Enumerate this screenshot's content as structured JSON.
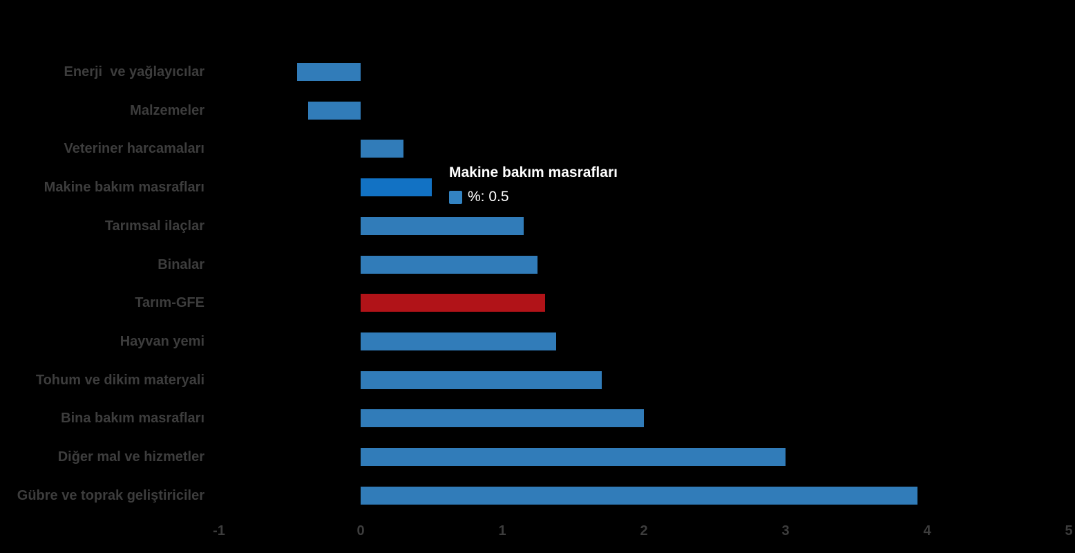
{
  "colors": {
    "background": "#000000",
    "bar": "#317CB9",
    "bar_hovered": "#1272C4",
    "bar_accent": "#B11318",
    "category_label": "#3D3D3D",
    "axis_label": "#3D3D3D",
    "tooltip_text": "#FFFFFF",
    "tooltip_swatch": "#3383C2"
  },
  "tooltip": {
    "title": "Makine bakım masrafları",
    "series_label": "%",
    "value": "0.5",
    "text": "%: 0.5"
  },
  "chart_data": {
    "type": "bar",
    "orientation": "horizontal",
    "title": "",
    "xlabel": "",
    "ylabel": "",
    "series_name": "%",
    "categories": [
      "Enerji  ve yağlayıcılar",
      "Malzemeler",
      "Veteriner harcamaları",
      "Makine bakım masrafları",
      "Tarımsal ilaçlar",
      "Binalar",
      "Tarım-GFE",
      "Hayvan yemi",
      "Tohum ve dikim materyali",
      "Bina bakım masrafları",
      "Diğer mal ve hizmetler",
      "Gübre ve toprak geliştiriciler"
    ],
    "values": [
      -0.45,
      -0.37,
      0.3,
      0.5,
      1.15,
      1.25,
      1.3,
      1.38,
      1.7,
      2,
      3,
      3.93
    ],
    "accent_category": "Tarım-GFE",
    "hovered_category": "Makine bakım masrafları",
    "xlim": [
      -1,
      5
    ],
    "xticks": [
      -1,
      0,
      1,
      2,
      3,
      4,
      5
    ],
    "grid": "off",
    "legend": "hidden"
  }
}
